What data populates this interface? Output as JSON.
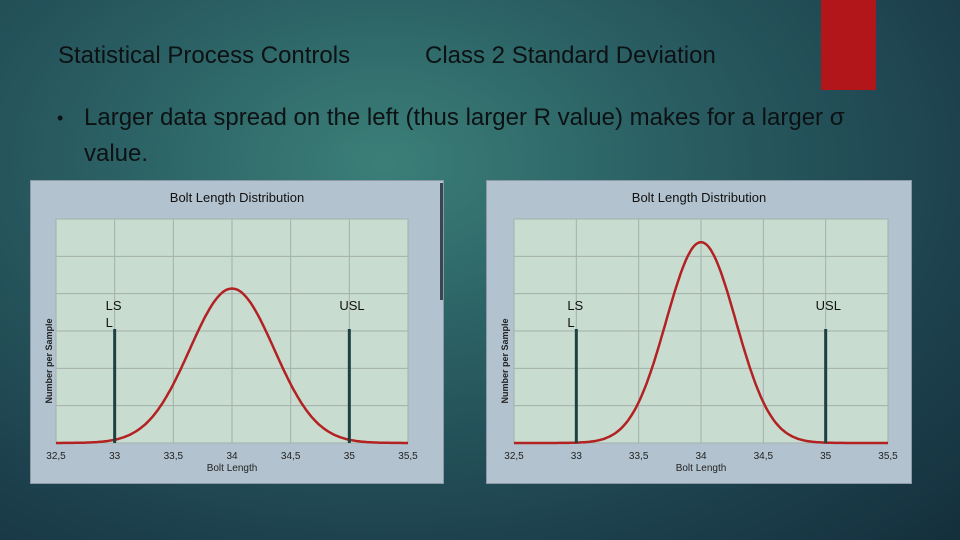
{
  "slide": {
    "title_left": "Statistical Process Controls",
    "title_right": "Class 2  Standard Deviation",
    "bullet": "•",
    "bullet_text": "Larger data spread on the left (thus larger R value) makes for a larger σ value."
  },
  "colors": {
    "plot_bg": "#c9dcd0",
    "grid": "#a4b1ab",
    "curve": "#b22222",
    "limit_line": "#1f4040",
    "accent": "#b2161a"
  },
  "chart_data": [
    {
      "type": "line",
      "title": "Bolt Length Distribution",
      "xlabel": "Bolt Length",
      "ylabel": "Number per Sample",
      "x_ticks": [
        "32,5",
        "33",
        "33,5",
        "34",
        "34,5",
        "35",
        "35,5"
      ],
      "xlim": [
        32.5,
        35.5
      ],
      "ylim": [
        0,
        1.45
      ],
      "series": [
        {
          "name": "",
          "distribution": "normal",
          "mean": 34.0,
          "std_dev": 0.36,
          "peak": 1.0
        }
      ],
      "limits": [
        {
          "label": "LS\nL",
          "x": 33.0
        },
        {
          "label": "USL",
          "x": 35.0
        }
      ]
    },
    {
      "type": "line",
      "title": "Bolt Length Distribution",
      "xlabel": "Bolt Length",
      "ylabel": "Number per Sample",
      "x_ticks": [
        "32,5",
        "33",
        "33,5",
        "34",
        "34,5",
        "35",
        "35,5"
      ],
      "xlim": [
        32.5,
        35.5
      ],
      "ylim": [
        0,
        1.45
      ],
      "series": [
        {
          "name": "",
          "distribution": "normal",
          "mean": 34.0,
          "std_dev": 0.28,
          "peak": 1.3
        }
      ],
      "limits": [
        {
          "label": "LS\nL",
          "x": 33.0
        },
        {
          "label": "USL",
          "x": 35.0
        }
      ]
    }
  ]
}
